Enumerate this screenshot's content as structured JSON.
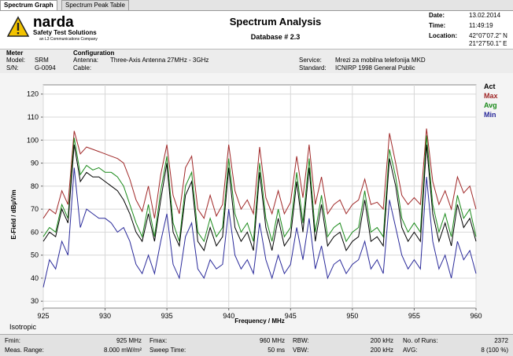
{
  "tabs": [
    "Spectrum Graph",
    "Spectrum Peak Table"
  ],
  "header": {
    "brand": "narda",
    "brand_sub": "Safety Test Solutions",
    "brand_company": "an L3 Communications Company",
    "title": "Spectrum Analysis",
    "subtitle": "Database # 2.3",
    "date_label": "Date:",
    "date": "13.02.2014",
    "time_label": "Time:",
    "time": "11:49:19",
    "location_label": "Location:",
    "location": [
      "42°07'07.2\" N",
      "21°27'50.1\" E"
    ]
  },
  "info": {
    "meter_title": "Meter",
    "model_label": "Model:",
    "model": "SRM",
    "sn_label": "S/N:",
    "sn": "G-0094",
    "config_title": "Configuration",
    "antenna_label": "Antenna:",
    "antenna": "Three-Axis Antenna 27MHz - 3GHz",
    "cable_label": "Cable:",
    "service_label": "Service:",
    "service": "Mrezi za mobilna telefonija MKD",
    "standard_label": "Standard:",
    "standard": "ICNIRP 1998 General Public"
  },
  "chart_data": {
    "type": "line",
    "ylabel": "E-Field / dBµV/m",
    "xlabel": "Frequency / MHz",
    "note": "Isotropic",
    "xlim": [
      925,
      960
    ],
    "xticks": [
      925,
      930,
      935,
      940,
      945,
      950,
      955,
      960
    ],
    "ylim": [
      27,
      124
    ],
    "yticks": [
      30,
      40,
      50,
      60,
      70,
      80,
      90,
      100,
      110,
      120
    ],
    "grid": true,
    "legend": "right",
    "x": [
      925,
      925.5,
      926,
      926.5,
      927,
      927.5,
      928,
      928.5,
      929,
      929.5,
      930,
      930.5,
      931,
      931.5,
      932,
      932.5,
      933,
      933.5,
      934,
      934.5,
      935,
      935.5,
      936,
      936.5,
      937,
      937.5,
      938,
      938.5,
      939,
      939.5,
      940,
      940.5,
      941,
      941.5,
      942,
      942.5,
      943,
      943.5,
      944,
      944.5,
      945,
      945.5,
      946,
      946.5,
      947,
      947.5,
      948,
      948.5,
      949,
      949.5,
      950,
      950.5,
      951,
      951.5,
      952,
      952.5,
      953,
      953.5,
      954,
      954.5,
      955,
      955.5,
      956,
      956.5,
      957,
      957.5,
      958,
      958.5,
      959,
      959.5,
      960
    ],
    "series": [
      {
        "name": "Act",
        "color": "#000000",
        "values": [
          56,
          60,
          58,
          70,
          64,
          98,
          82,
          86,
          84,
          84,
          82,
          80,
          78,
          74,
          68,
          60,
          56,
          68,
          56,
          74,
          90,
          60,
          54,
          76,
          82,
          56,
          52,
          62,
          54,
          58,
          88,
          62,
          56,
          60,
          52,
          86,
          62,
          52,
          66,
          54,
          58,
          82,
          60,
          88,
          56,
          72,
          54,
          58,
          60,
          52,
          56,
          58,
          74,
          56,
          58,
          54,
          92,
          80,
          62,
          56,
          60,
          56,
          98,
          68,
          56,
          64,
          54,
          72,
          62,
          66,
          56
        ]
      },
      {
        "name": "Max",
        "color": "#a02828",
        "values": [
          66,
          70,
          68,
          78,
          72,
          104,
          94,
          97,
          96,
          95,
          94,
          93,
          92,
          90,
          83,
          74,
          69,
          80,
          66,
          85,
          98,
          76,
          68,
          88,
          93,
          70,
          66,
          76,
          67,
          72,
          98,
          78,
          70,
          74,
          68,
          97,
          75,
          68,
          78,
          68,
          73,
          93,
          75,
          98,
          72,
          84,
          68,
          72,
          74,
          68,
          72,
          74,
          83,
          72,
          73,
          70,
          103,
          90,
          76,
          72,
          75,
          72,
          105,
          82,
          72,
          78,
          70,
          84,
          77,
          80,
          70
        ]
      },
      {
        "name": "Avg",
        "color": "#1a8a1a",
        "values": [
          58,
          62,
          60,
          72,
          66,
          101,
          85,
          89,
          87,
          88,
          86,
          86,
          84,
          80,
          72,
          64,
          58,
          72,
          58,
          78,
          93,
          64,
          56,
          80,
          86,
          60,
          56,
          66,
          58,
          62,
          92,
          68,
          60,
          64,
          56,
          90,
          66,
          56,
          70,
          58,
          62,
          86,
          64,
          92,
          60,
          76,
          58,
          62,
          64,
          56,
          60,
          62,
          78,
          60,
          62,
          58,
          96,
          84,
          66,
          60,
          64,
          60,
          102,
          72,
          60,
          68,
          58,
          76,
          66,
          70,
          58
        ]
      },
      {
        "name": "Min",
        "color": "#2a2a9a",
        "values": [
          36,
          48,
          44,
          56,
          50,
          88,
          62,
          70,
          68,
          66,
          66,
          64,
          60,
          62,
          56,
          46,
          42,
          50,
          42,
          56,
          68,
          46,
          40,
          58,
          64,
          44,
          40,
          48,
          44,
          46,
          70,
          50,
          44,
          48,
          42,
          64,
          48,
          40,
          50,
          42,
          46,
          62,
          48,
          66,
          44,
          54,
          40,
          46,
          48,
          42,
          46,
          48,
          56,
          44,
          48,
          42,
          74,
          62,
          50,
          44,
          48,
          44,
          84,
          56,
          44,
          50,
          40,
          56,
          48,
          52,
          42
        ]
      }
    ]
  },
  "footer": {
    "fmin_label": "Fmin:",
    "fmin": "925 MHz",
    "range_label": "Meas. Range:",
    "range": "8.000 mW/m²",
    "fmax_label": "Fmax:",
    "fmax": "960 MHz",
    "sweep_label": "Sweep Time:",
    "sweep": "50 ms",
    "rbw_label": "RBW:",
    "rbw": "200 kHz",
    "vbw_label": "VBW:",
    "vbw": "200 kHz",
    "runs_label": "No. of Runs:",
    "runs": "2372",
    "avg_label": "AVG:",
    "avg": "8 (100 %)"
  }
}
